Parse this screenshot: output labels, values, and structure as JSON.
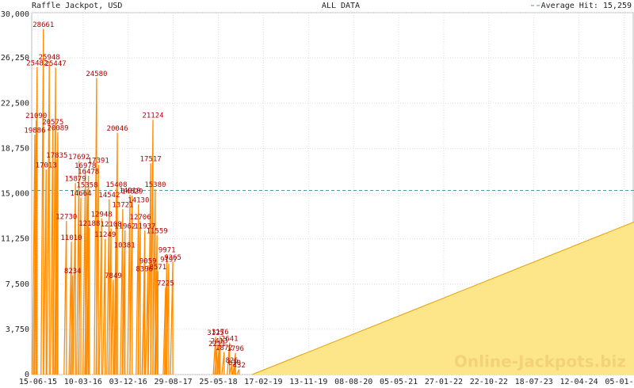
{
  "chart_data": {
    "type": "line",
    "title": "Raffle Jackpot, USD",
    "subtitle": "ALL DATA",
    "watermark": "Online-Jackpots.biz",
    "xlim": [
      -0.14,
      13.22
    ],
    "xticks": [
      {
        "value": 0,
        "label": "15-06-15"
      },
      {
        "value": 1,
        "label": "10-03-16"
      },
      {
        "value": 2,
        "label": "03-12-16"
      },
      {
        "value": 3,
        "label": "29-08-17"
      },
      {
        "value": 4,
        "label": "25-05-18"
      },
      {
        "value": 5,
        "label": "17-02-19"
      },
      {
        "value": 6,
        "label": "13-11-19"
      },
      {
        "value": 7,
        "label": "08-08-20"
      },
      {
        "value": 8,
        "label": "05-05-21"
      },
      {
        "value": 9,
        "label": "27-01-22"
      },
      {
        "value": 10,
        "label": "22-10-22"
      },
      {
        "value": 11,
        "label": "18-07-23"
      },
      {
        "value": 12,
        "label": "12-04-24"
      },
      {
        "value": 13,
        "label": "05-01-25"
      }
    ],
    "ylim": [
      0,
      30000
    ],
    "yticks": [
      0,
      {
        "value": 3750,
        "label": "3,750"
      },
      {
        "value": 7500,
        "label": "7,500"
      },
      {
        "value": 11250,
        "label": "11,250"
      },
      {
        "value": 15000,
        "label": "15,000"
      },
      {
        "value": 18750,
        "label": "18,750"
      },
      {
        "value": 22500,
        "label": "22,500"
      },
      {
        "value": 26250,
        "label": "26,250"
      },
      {
        "value": 30000,
        "label": "30,000"
      }
    ],
    "grid": true,
    "average": {
      "name": "Average Hit: 15,259",
      "value": 15259,
      "color": "#4a9aa8"
    },
    "series": [
      {
        "name": "Jackpot",
        "color": "#ff8c00",
        "label_color": "#b00000",
        "x": [
          -0.07,
          -0.04,
          -0.02,
          0.12,
          0.18,
          0.25,
          0.33,
          0.39,
          0.42,
          0.44,
          0.63,
          0.74,
          0.77,
          0.83,
          0.91,
          0.95,
          1.05,
          1.09,
          1.12,
          1.14,
          1.3,
          1.34,
          1.41,
          1.49,
          1.58,
          1.62,
          1.67,
          1.74,
          1.76,
          1.88,
          1.92,
          1.93,
          2.04,
          2.09,
          2.23,
          2.27,
          2.36,
          2.37,
          2.44,
          2.5,
          2.55,
          2.6,
          2.64,
          2.66,
          2.83,
          2.86,
          2.9,
          2.99,
          3.94,
          3.97,
          4.02,
          4.04,
          4.13,
          4.25,
          4.3,
          4.36,
          4.38,
          4.46
        ],
        "values": [
          19886,
          21090,
          25482,
          28661,
          17013,
          25948,
          20575,
          25447,
          17835,
          20089,
          12730,
          11010,
          8234,
          15879,
          17692,
          14664,
          16978,
          15358,
          16478,
          12188,
          24580,
          17391,
          12948,
          11249,
          14542,
          12108,
          7849,
          15408,
          20046,
          13721,
          10381,
          11962,
          14910,
          14829,
          14130,
          12706,
          8396,
          11937,
          9059,
          17517,
          21124,
          15380,
          11559,
          8571,
          7225,
          9971,
          9197,
          9365,
          3125,
          2211,
          2413,
          3176,
          1872,
          2641,
          826,
          630,
          1796,
          432
        ]
      },
      {
        "color": "#fde68a",
        "line_color": "#e8a000",
        "x": [
          4.75,
          13.22
        ],
        "values": [
          0,
          12650
        ]
      }
    ]
  }
}
